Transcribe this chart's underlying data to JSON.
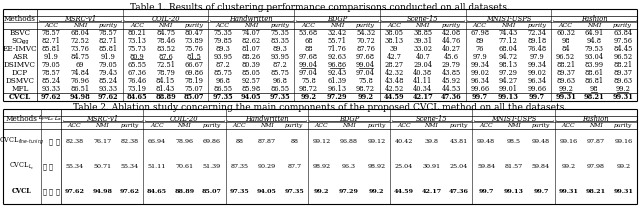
{
  "title1": "Table 1. Results of clustering performance comparisons conducted on all datasets.",
  "title2": "Table 2. Ablation study concerning the main components of the proposed CVCL method on all the datasets.",
  "datasets": [
    "MSRC-v1",
    "COIL-20",
    "Handwritten",
    "BDGP",
    "Scene-15",
    "MNIST-USPS",
    "Fashion"
  ],
  "methods1": [
    "BSVC",
    "SC_Agg",
    "EE-IMVC",
    "ASR",
    "DSIMVC",
    "DCP",
    "DSMVC",
    "MFL",
    "CVCL"
  ],
  "table1_data": [
    [
      78.57,
      68.04,
      78.57,
      80.21,
      84.75,
      80.47,
      75.35,
      74.07,
      75.35,
      53.68,
      32.42,
      54.32,
      38.05,
      38.85,
      42.08,
      67.98,
      74.43,
      72.34,
      60.32,
      64.91,
      63.84
    ],
    [
      82.71,
      72.52,
      82.71,
      73.13,
      78.46,
      73.89,
      79.85,
      82.62,
      83.35,
      68,
      55.71,
      70.72,
      38.13,
      39.31,
      44.76,
      89,
      77.12,
      89.18,
      98,
      94.8,
      97.56
    ],
    [
      85.81,
      73.76,
      85.81,
      75.73,
      83.52,
      75.76,
      89.3,
      81.07,
      89.3,
      88,
      71.76,
      87.76,
      39,
      33.02,
      40.27,
      76,
      68.04,
      76.48,
      84,
      79.53,
      84.45
    ],
    [
      91.9,
      84.75,
      91.9,
      80.9,
      87.6,
      81.5,
      93.95,
      88.26,
      93.95,
      97.68,
      92.63,
      97.68,
      42.7,
      40.7,
      45.6,
      97.9,
      94.72,
      97.9,
      96.52,
      93.04,
      96.52
    ],
    [
      79.05,
      69,
      79.05,
      65.55,
      72.51,
      66.67,
      87.2,
      80.39,
      87.2,
      99.04,
      96.86,
      99.04,
      28.27,
      29.04,
      29.79,
      99.34,
      98.13,
      99.34,
      88.21,
      83.99,
      88.21
    ],
    [
      78.57,
      74.84,
      79.43,
      67.36,
      78.79,
      69.86,
      85.75,
      85.05,
      85.75,
      97.04,
      92.43,
      97.04,
      42.32,
      40.38,
      43.85,
      99.02,
      97.29,
      99.02,
      89.37,
      88.61,
      89.37
    ],
    [
      85.24,
      76.96,
      85.24,
      76.46,
      84.15,
      78.19,
      96.8,
      92.57,
      96.8,
      75.8,
      61.39,
      75.8,
      43.48,
      41.11,
      45.92,
      96.34,
      94.27,
      96.34,
      89.63,
      86.81,
      89.63
    ],
    [
      93.33,
      86.51,
      93.33,
      73.19,
      81.43,
      75.07,
      86.55,
      85.98,
      86.55,
      98.72,
      96.13,
      98.72,
      42.52,
      40.34,
      44.53,
      99.66,
      99.01,
      99.66,
      99.2,
      98,
      99.2
    ],
    [
      97.62,
      94.98,
      97.62,
      84.65,
      88.89,
      85.07,
      97.35,
      94.05,
      97.35,
      99.2,
      97.29,
      99.2,
      44.59,
      42.17,
      47.36,
      99.7,
      99.13,
      99.7,
      99.31,
      98.21,
      99.31
    ]
  ],
  "underline_cells_t1": [
    [
      3,
      3
    ],
    [
      3,
      4
    ],
    [
      3,
      5
    ],
    [
      4,
      9
    ],
    [
      4,
      10
    ],
    [
      4,
      11
    ],
    [
      7,
      18
    ],
    [
      7,
      19
    ],
    [
      7,
      20
    ]
  ],
  "bold_row_t1": 8,
  "methods2_checks": [
    [
      false,
      true,
      true
    ],
    [
      true,
      true,
      false
    ],
    [
      true,
      true,
      true
    ]
  ],
  "table2_data": [
    [
      82.38,
      76.17,
      82.38,
      66.94,
      78.96,
      69.86,
      88,
      87.87,
      88,
      99.12,
      96.88,
      99.12,
      40.42,
      39.8,
      43.81,
      99.48,
      98.5,
      99.48,
      99.16,
      97.87,
      99.16
    ],
    [
      55.34,
      50.71,
      55.34,
      51.11,
      70.61,
      51.39,
      87.35,
      90.29,
      87.7,
      98.92,
      96.3,
      98.92,
      25.04,
      30.91,
      25.04,
      59.84,
      81.57,
      59.84,
      99.2,
      97.98,
      99.2
    ],
    [
      97.62,
      94.98,
      97.62,
      84.65,
      88.89,
      85.07,
      97.35,
      94.05,
      97.35,
      99.2,
      97.29,
      99.2,
      44.59,
      42.17,
      47.36,
      99.7,
      99.13,
      99.7,
      99.31,
      98.21,
      99.31
    ]
  ],
  "bg_color": "#ffffff",
  "line_color": "#000000",
  "fontsize": 5.2,
  "title_fontsize": 6.5
}
